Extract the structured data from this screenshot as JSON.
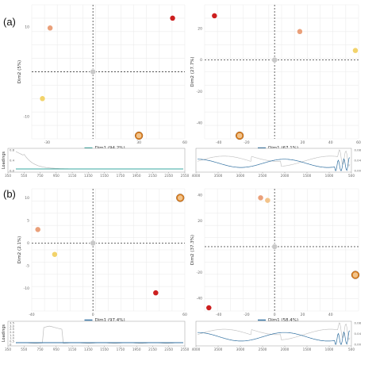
{
  "panel_labels": [
    "(a)",
    "(b)"
  ],
  "loadings_label": "Loadings",
  "colors": {
    "red": "#cc1f1f",
    "orange_ring": "#d87a1a",
    "salmon": "#eaa07a",
    "light_orange": "#f2c38a",
    "yellow": "#f2d36b",
    "gray": "#c8c8c8",
    "grid": "#ececec",
    "axis": "#8a8a8a",
    "teal": "#3aa8a0",
    "blue": "#2f6fa0"
  },
  "chart_data": [
    {
      "id": "a-left",
      "type": "scatter",
      "xlabel": "Dim1 (94.2%)",
      "ylabel": "Dim2 (5%)",
      "xlim": [
        -40,
        60
      ],
      "ylim": [
        -15,
        15
      ],
      "xticks": [
        -30,
        30,
        60
      ],
      "yticks": [
        -10,
        10
      ],
      "points": [
        {
          "x": 52,
          "y": 12,
          "color": "red"
        },
        {
          "x": -28,
          "y": 9.8,
          "color": "salmon"
        },
        {
          "x": -33,
          "y": -6,
          "color": "yellow"
        },
        {
          "x": 30,
          "y": -15,
          "color": "orange_ring"
        },
        {
          "x": 0,
          "y": 0,
          "color": "gray"
        }
      ]
    },
    {
      "id": "a-right",
      "type": "scatter",
      "xlabel": "Dim1 (67.1%)",
      "ylabel": "Dim2 (27.7%)",
      "xlim": [
        -50,
        60
      ],
      "ylim": [
        -50,
        35
      ],
      "xticks": [
        -40,
        -20,
        20,
        40,
        60
      ],
      "yticks": [
        20,
        0,
        -20,
        -40
      ],
      "points": [
        {
          "x": -43,
          "y": 28,
          "color": "red"
        },
        {
          "x": 18,
          "y": 18,
          "color": "salmon"
        },
        {
          "x": 58,
          "y": 6,
          "color": "yellow"
        },
        {
          "x": -25,
          "y": -55,
          "color": "orange_ring"
        },
        {
          "x": 0,
          "y": 0,
          "color": "gray"
        }
      ]
    },
    {
      "id": "b-left",
      "type": "scatter",
      "xlabel": "Dim1 (97.4%)",
      "ylabel": "Dim2 (2.1%)",
      "xlim": [
        -40,
        60
      ],
      "ylim": [
        -15,
        12
      ],
      "xticks": [
        -40,
        0,
        60
      ],
      "yticks": [
        10,
        5,
        0,
        -5,
        -10
      ],
      "points": [
        {
          "x": 57,
          "y": 10,
          "color": "orange_ring"
        },
        {
          "x": -36,
          "y": 3,
          "color": "salmon"
        },
        {
          "x": -25,
          "y": -2.5,
          "color": "yellow"
        },
        {
          "x": 41,
          "y": -11,
          "color": "red"
        },
        {
          "x": 0,
          "y": 0,
          "color": "gray"
        }
      ]
    },
    {
      "id": "b-right",
      "type": "scatter",
      "xlabel": "Dim1 (58.4%)",
      "ylabel": "Dim2 (37.3%)",
      "xlim": [
        -50,
        60
      ],
      "ylim": [
        -50,
        45
      ],
      "xticks": [
        -40,
        -20,
        0,
        20,
        40
      ],
      "yticks": [
        40,
        20,
        -20,
        -40
      ],
      "points": [
        {
          "x": -10,
          "y": 38,
          "color": "salmon"
        },
        {
          "x": -5,
          "y": 36,
          "color": "light_orange"
        },
        {
          "x": 58,
          "y": -22,
          "color": "orange_ring"
        },
        {
          "x": -47,
          "y": -48,
          "color": "red"
        },
        {
          "x": 0,
          "y": 0,
          "color": "gray"
        }
      ]
    },
    {
      "id": "a-loadings-left",
      "type": "line",
      "xticks": [
        "350",
        "550",
        "750",
        "950",
        "1150",
        "1350",
        "1550",
        "1750",
        "1950",
        "2150",
        "2350",
        "2550"
      ],
      "yticks": [
        "0.8",
        "0.4",
        "0.0"
      ],
      "ylim": [
        0,
        1
      ]
    },
    {
      "id": "a-loadings-right",
      "type": "line",
      "xticks": [
        "4000",
        "3500",
        "3000",
        "2500",
        "2000",
        "1500",
        "1000",
        "500"
      ],
      "yticks": [
        "0.08",
        "0.04",
        "0.00"
      ],
      "ylim": [
        0,
        0.1
      ]
    },
    {
      "id": "b-loadings-left",
      "type": "line",
      "xticks": [
        "350",
        "550",
        "750",
        "950",
        "1150",
        "1350",
        "1550",
        "1750",
        "1950",
        "2150",
        "2350",
        "2550"
      ],
      "yticks": [
        "3.5",
        "3.0",
        "2.5",
        "2.0",
        "1.5",
        "1.0",
        "0.5",
        "0"
      ],
      "ylim": [
        0,
        3.5
      ]
    },
    {
      "id": "b-loadings-right",
      "type": "line",
      "xticks": [
        "4000",
        "3500",
        "3000",
        "2500",
        "2000",
        "1500",
        "1000",
        "500"
      ],
      "yticks": [
        "0.08",
        "0.04",
        "0.00"
      ],
      "ylim": [
        0,
        0.1
      ]
    }
  ]
}
